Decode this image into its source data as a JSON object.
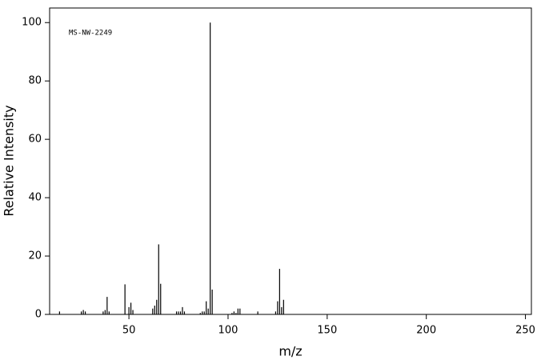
{
  "chart_data": {
    "type": "stem",
    "title": "MS-NW-2249",
    "x_label": "m/z",
    "y_label": "Relative Intensity",
    "x": [
      15,
      26,
      27,
      28,
      37,
      38,
      39,
      40,
      48,
      50,
      51,
      52,
      62,
      63,
      64,
      65,
      66,
      74,
      75,
      76,
      77,
      78,
      86,
      87,
      88,
      89,
      90,
      91,
      92,
      102,
      103,
      104,
      105,
      106,
      115,
      124,
      125,
      126,
      127,
      128
    ],
    "values": [
      1,
      1,
      1.5,
      1,
      1,
      1.5,
      6,
      1,
      10.3,
      2.5,
      4,
      1.5,
      2,
      3,
      5,
      24,
      10.5,
      1,
      1,
      1,
      2.5,
      1,
      0.5,
      1,
      1,
      4.5,
      2,
      100,
      8.5,
      0.5,
      1,
      0.5,
      2,
      2,
      1,
      1,
      4.5,
      15.6,
      2.5,
      5
    ],
    "color": "#000000",
    "xlim": [
      10,
      253
    ],
    "xticks": [
      50,
      100,
      150,
      200,
      250
    ],
    "ylim": [
      0,
      105
    ],
    "yticks": [
      0,
      20,
      40,
      60,
      80,
      100
    ]
  }
}
